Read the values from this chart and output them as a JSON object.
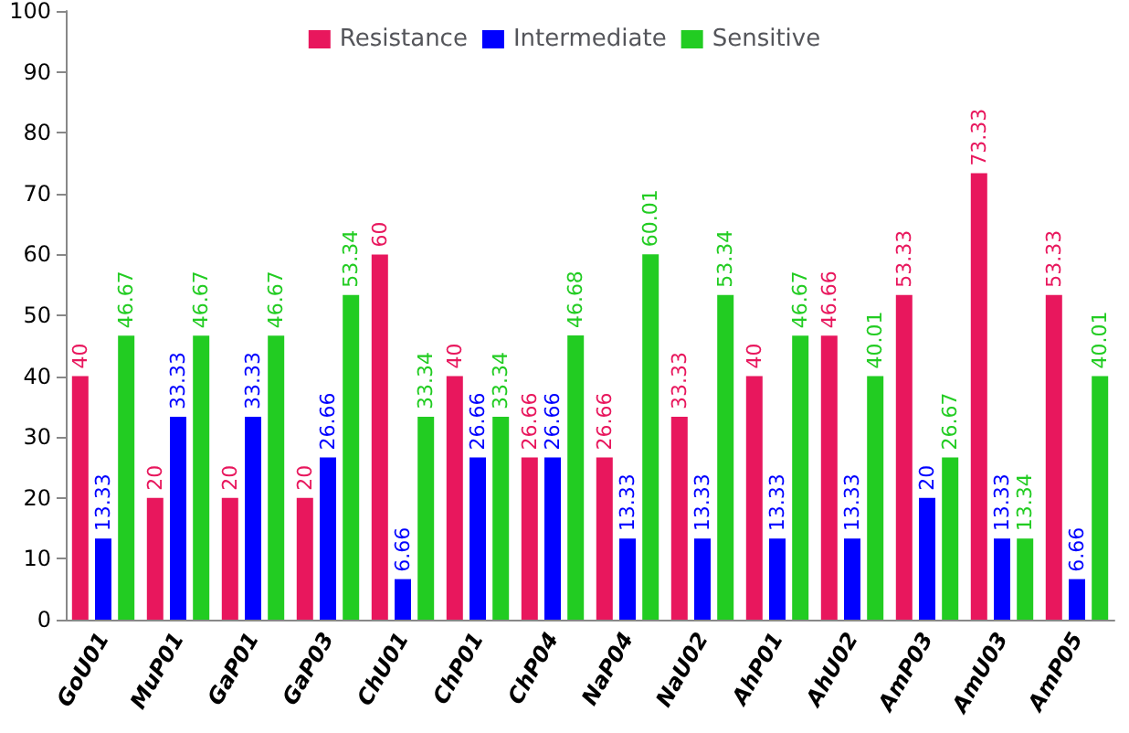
{
  "chart_data": {
    "type": "bar",
    "categories": [
      "GoU01",
      "MuP01",
      "GaP01",
      "GaP03",
      "ChU01",
      "ChP01",
      "ChP04",
      "NaP04",
      "NaU02",
      "AhP01",
      "AhU02",
      "AmP03",
      "AmU03",
      "AmP05"
    ],
    "series": [
      {
        "name": "Resistance",
        "color": "#e8175d",
        "values": [
          40,
          20,
          20,
          20,
          60,
          40,
          26.66,
          26.66,
          33.33,
          40,
          46.66,
          53.33,
          73.33,
          53.33
        ]
      },
      {
        "name": "Intermediate",
        "color": "#0000ff",
        "values": [
          13.33,
          33.33,
          33.33,
          26.66,
          6.66,
          26.66,
          26.66,
          13.33,
          13.33,
          13.33,
          13.33,
          20,
          13.33,
          6.66
        ]
      },
      {
        "name": "Sensitive",
        "color": "#22cc22",
        "values": [
          46.67,
          46.67,
          46.67,
          53.34,
          33.34,
          33.34,
          46.68,
          60.01,
          53.34,
          46.67,
          40.01,
          26.67,
          13.34,
          40.01
        ]
      }
    ],
    "ylim": [
      0,
      100
    ],
    "yticks": [
      0,
      10,
      20,
      30,
      40,
      50,
      60,
      70,
      80,
      90,
      100
    ],
    "grid": false,
    "legend": "top",
    "data_labels": true
  }
}
